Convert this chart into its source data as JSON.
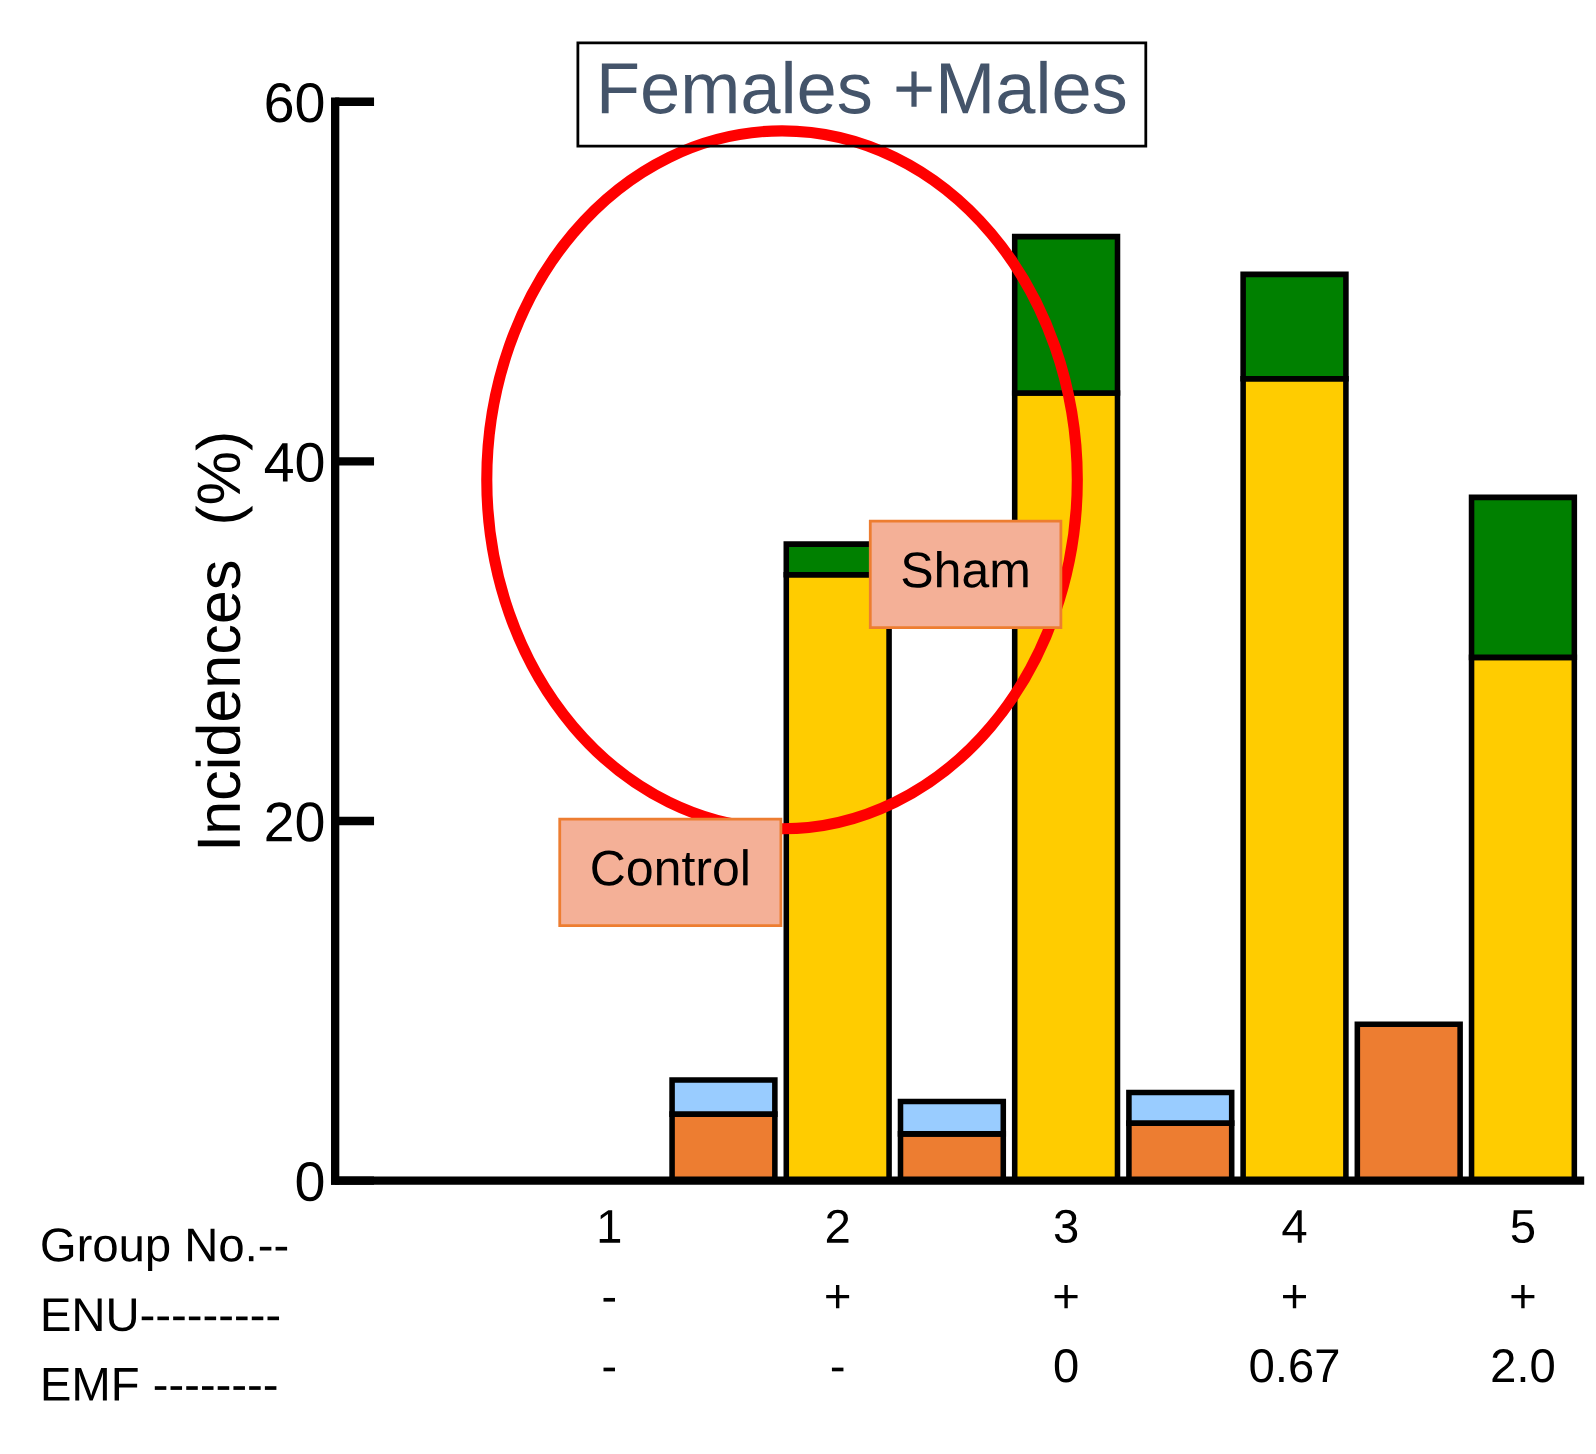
{
  "chart_data": {
    "type": "bar",
    "title": "Females +Males",
    "ylabel": "Incidences  (%)",
    "categories": [
      null,
      "1\n-\n-",
      null,
      "2\n+\n-",
      null,
      "3\n+\n0",
      null,
      "4\n+\n0.67",
      null,
      "5\n+\n2.0"
    ],
    "stacked": true,
    "series": [
      {
        "color": "#ed7d31",
        "values": [
          0,
          null,
          3.7,
          null,
          2.6,
          null,
          3.2,
          null,
          8.7,
          null
        ]
      },
      {
        "color": "#99ccff",
        "values": [
          0,
          null,
          1.9,
          null,
          1.8,
          null,
          1.7,
          null,
          0,
          null
        ]
      },
      {
        "color": "#ffcc00",
        "values": [
          null,
          0,
          null,
          33.7,
          null,
          43.8,
          null,
          44.6,
          null,
          29.1
        ]
      },
      {
        "color": "#008000",
        "values": [
          null,
          0,
          null,
          1.7,
          null,
          8.7,
          null,
          5.8,
          null,
          8.9
        ]
      }
    ],
    "ylim": [
      0,
      60
    ],
    "yticks": [
      0,
      20,
      40,
      60
    ],
    "grid": false,
    "legend": false,
    "annotations": [
      "Group No.--\nENU---------\nEMF --------",
      "Control",
      "Sham"
    ]
  }
}
